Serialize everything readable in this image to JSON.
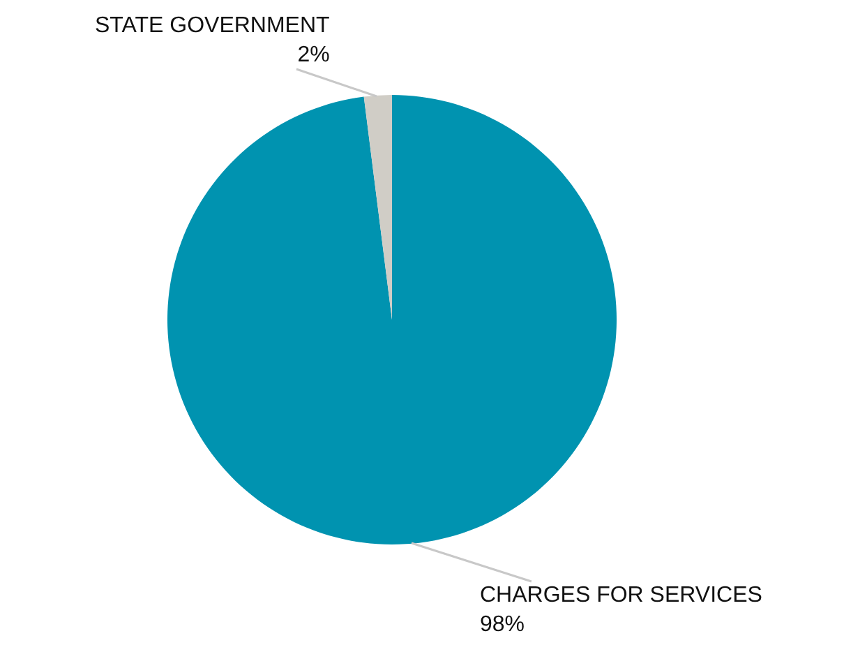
{
  "chart_data": {
    "type": "pie",
    "categories": [
      "CHARGES FOR SERVICES",
      "STATE GOVERNMENT"
    ],
    "values": [
      98,
      2
    ],
    "colors": [
      "#0093b0",
      "#d0cdc6"
    ],
    "value_labels": [
      "98%",
      "2%"
    ]
  }
}
